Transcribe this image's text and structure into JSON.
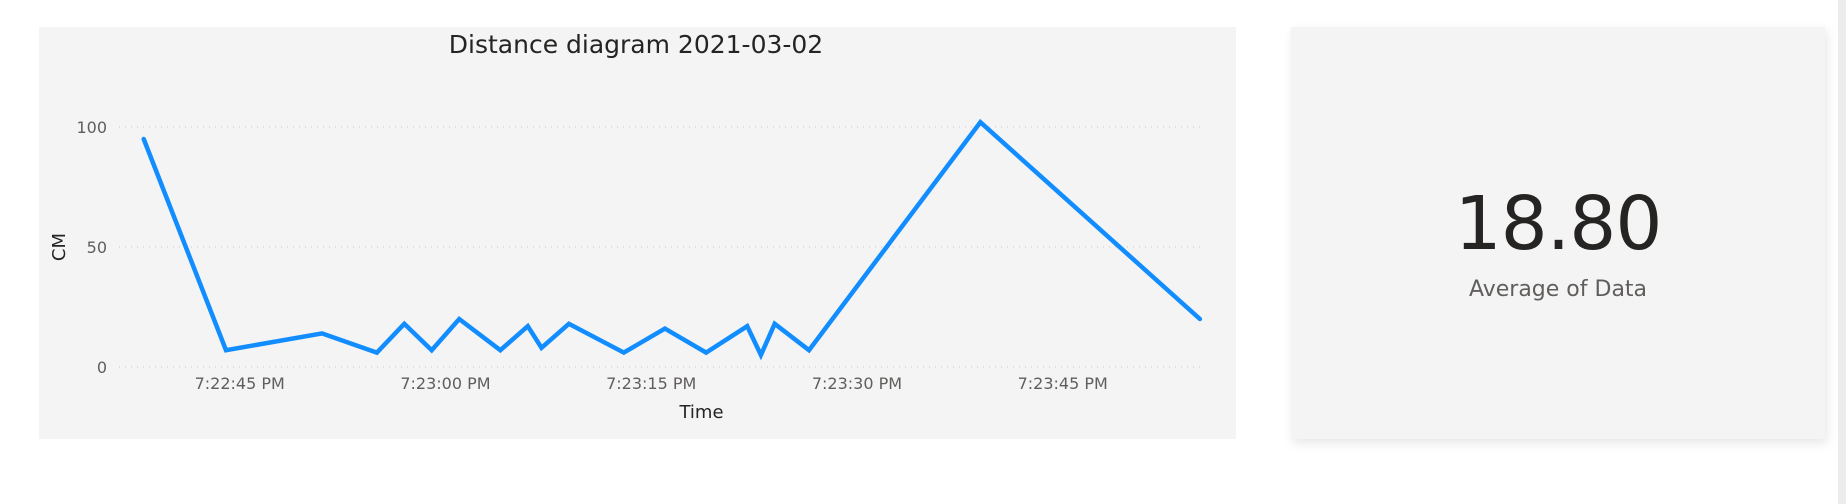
{
  "chart_data": {
    "type": "line",
    "title": "Distance diagram 2021-03-02",
    "xlabel": "Time",
    "ylabel": "CM",
    "ylim": [
      0,
      100
    ],
    "yticks": [
      0,
      50,
      100
    ],
    "xticks": [
      {
        "t": 45,
        "label": "7:22:45 PM"
      },
      {
        "t": 60,
        "label": "7:23:00 PM"
      },
      {
        "t": 75,
        "label": "7:23:15 PM"
      },
      {
        "t": 90,
        "label": "7:23:30 PM"
      },
      {
        "t": 105,
        "label": "7:23:45 PM"
      }
    ],
    "xlim": [
      36.2,
      115.3
    ],
    "grid": true,
    "series": [
      {
        "color": "#118dff",
        "x": [
          38,
          44,
          51,
          55,
          57,
          59,
          61,
          64,
          66,
          67,
          69,
          73,
          76,
          79,
          82,
          83,
          84,
          86.5,
          99,
          115
        ],
        "y": [
          95,
          7,
          14,
          6,
          18,
          7,
          20,
          7,
          17,
          8,
          18,
          6,
          16,
          6,
          17,
          5,
          18,
          7,
          102,
          20
        ]
      }
    ]
  },
  "kpi": {
    "value": "18.80",
    "label": "Average of Data"
  }
}
